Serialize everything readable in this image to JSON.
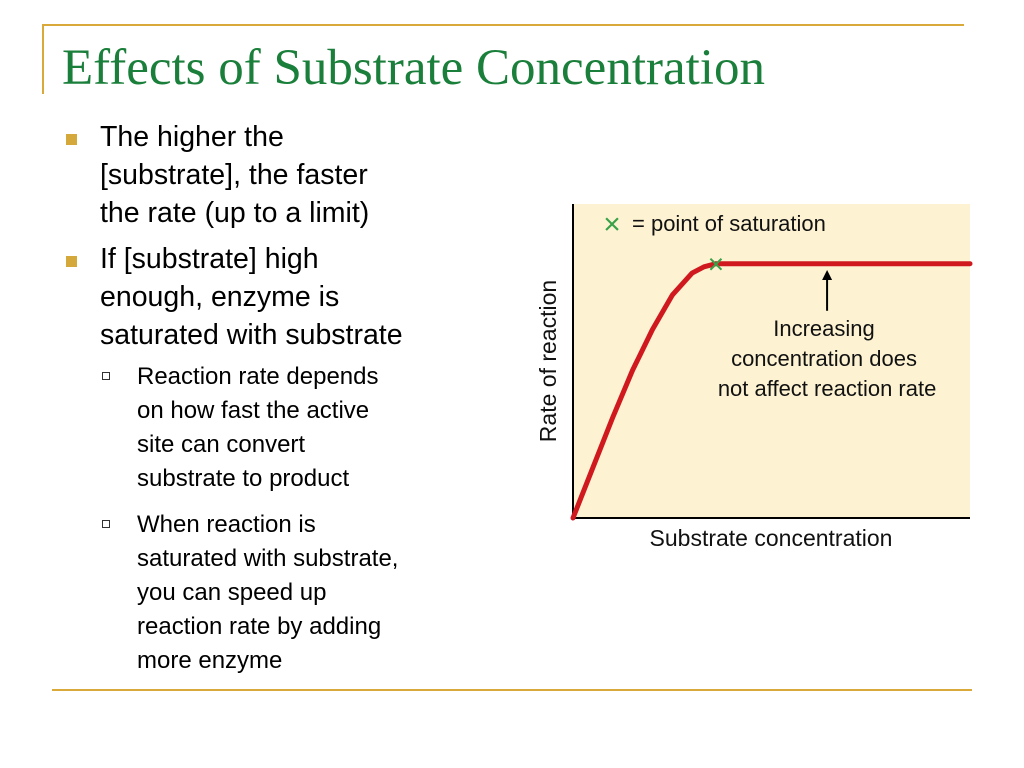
{
  "slide": {
    "title": "Effects of Substrate Concentration"
  },
  "bullets": [
    {
      "text": "The higher the\n[substrate], the faster\nthe rate (up to a limit)",
      "sub": []
    },
    {
      "text": "If [substrate] high\nenough, enzyme is\nsaturated with substrate",
      "sub": [
        "Reaction rate depends\non how fast the active\nsite can convert\nsubstrate to product",
        "When reaction is\nsaturated with substrate,\nyou can speed up\nreaction rate by adding\nmore enzyme"
      ]
    }
  ],
  "colors": {
    "title": "#1a7f3a",
    "accent_lines": "#d9a93a",
    "bullet": "#d4a83a",
    "plot_background": "#fdf3d3",
    "curve": "#d0191f",
    "saturation_marker": "#3aa14a"
  },
  "chart_data": {
    "type": "line",
    "title": "",
    "xlabel": "Substrate concentration",
    "ylabel": "Rate of reaction",
    "xlim": [
      0,
      100
    ],
    "ylim": [
      0,
      100
    ],
    "grid": false,
    "legend_label": "= point of saturation",
    "legend_marker": "×",
    "series": [
      {
        "x": [
          0,
          5,
          10,
          15,
          20,
          25,
          30,
          33,
          36,
          40,
          100
        ],
        "y": [
          0,
          16,
          32,
          47,
          60,
          71,
          78,
          80,
          81,
          81,
          81
        ]
      }
    ],
    "saturation_point": {
      "x": 36,
      "y": 81
    },
    "annotation": {
      "text": [
        "Increasing",
        "concentration does",
        "not affect reaction rate"
      ],
      "arrow_x": 64,
      "arrow_from_y": 66,
      "arrow_to_y": 79
    }
  }
}
